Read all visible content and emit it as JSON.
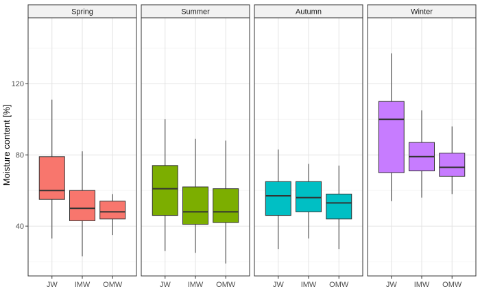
{
  "chart_data": {
    "type": "boxplot",
    "ylabel": "Moisture content [%]",
    "xlabel": "",
    "ylim": [
      12,
      157
    ],
    "yticks": [
      40,
      80,
      120
    ],
    "grid": true,
    "categories": [
      "JW",
      "IMW",
      "OMW"
    ],
    "facets": [
      {
        "label": "Spring",
        "color": "#F8766D",
        "boxes": [
          {
            "category": "JW",
            "min": 33,
            "q1": 55,
            "median": 60,
            "q3": 79,
            "max": 111
          },
          {
            "category": "IMW",
            "min": 23,
            "q1": 43,
            "median": 50,
            "q3": 60,
            "max": 82
          },
          {
            "category": "OMW",
            "min": 35,
            "q1": 44,
            "median": 48,
            "q3": 54,
            "max": 58
          }
        ]
      },
      {
        "label": "Summer",
        "color": "#7CAE00",
        "boxes": [
          {
            "category": "JW",
            "min": 26,
            "q1": 46,
            "median": 61,
            "q3": 74,
            "max": 100
          },
          {
            "category": "IMW",
            "min": 25,
            "q1": 41,
            "median": 48,
            "q3": 62,
            "max": 89
          },
          {
            "category": "OMW",
            "min": 19,
            "q1": 42,
            "median": 48,
            "q3": 61,
            "max": 88
          }
        ]
      },
      {
        "label": "Autumn",
        "color": "#00BFC4",
        "boxes": [
          {
            "category": "JW",
            "min": 27,
            "q1": 46,
            "median": 57,
            "q3": 65,
            "max": 83
          },
          {
            "category": "IMW",
            "min": 33,
            "q1": 48,
            "median": 56,
            "q3": 65,
            "max": 75
          },
          {
            "category": "OMW",
            "min": 27,
            "q1": 44,
            "median": 53,
            "q3": 58,
            "max": 74
          }
        ]
      },
      {
        "label": "Winter",
        "color": "#C77CFF",
        "boxes": [
          {
            "category": "JW",
            "min": 54,
            "q1": 70,
            "median": 100,
            "q3": 110,
            "max": 137
          },
          {
            "category": "IMW",
            "min": 56,
            "q1": 71,
            "median": 79,
            "q3": 87,
            "max": 105
          },
          {
            "category": "OMW",
            "min": 58,
            "q1": 68,
            "median": 73,
            "q3": 81,
            "max": 96
          }
        ]
      }
    ]
  }
}
